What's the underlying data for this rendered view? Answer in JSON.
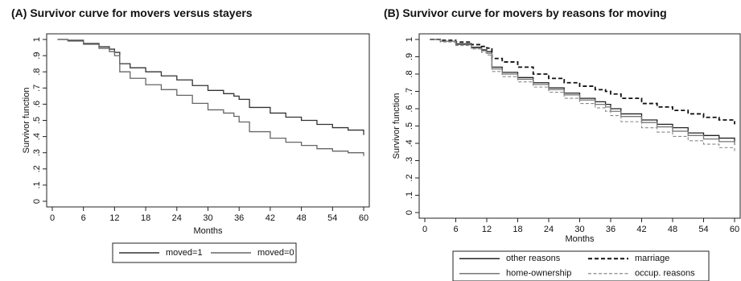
{
  "chart_data": [
    {
      "type": "line",
      "title": "(A) Survivor curve for movers versus stayers",
      "xlabel": "Months",
      "ylabel": "Survivor function",
      "xlim": [
        0,
        60
      ],
      "ylim": [
        0,
        1
      ],
      "xticks": [
        "0",
        "6",
        "12",
        "18",
        "24",
        "30",
        "36",
        "42",
        "48",
        "54",
        "60"
      ],
      "yticks": [
        "0",
        ".1",
        ".2",
        ".3",
        ".4",
        ".5",
        ".6",
        ".7",
        ".8",
        ".9",
        "1"
      ],
      "grid": false,
      "legend_placement": "bottom",
      "series": [
        {
          "name": "moved=1",
          "color": "#333333",
          "style": "solid",
          "x": [
            1,
            3,
            6,
            9,
            11,
            12,
            13,
            15,
            18,
            21,
            24,
            27,
            30,
            33,
            35,
            36,
            38,
            42,
            45,
            48,
            51,
            54,
            57,
            60
          ],
          "y": [
            1.0,
            0.995,
            0.975,
            0.955,
            0.94,
            0.92,
            0.85,
            0.825,
            0.8,
            0.775,
            0.75,
            0.715,
            0.685,
            0.665,
            0.65,
            0.63,
            0.58,
            0.545,
            0.52,
            0.5,
            0.475,
            0.455,
            0.44,
            0.41
          ]
        },
        {
          "name": "moved=0",
          "color": "#666666",
          "style": "solid",
          "x": [
            1,
            3,
            6,
            9,
            11,
            12,
            13,
            15,
            18,
            21,
            24,
            27,
            30,
            33,
            35,
            36,
            38,
            42,
            45,
            48,
            51,
            54,
            57,
            60
          ],
          "y": [
            1.0,
            0.99,
            0.97,
            0.945,
            0.925,
            0.9,
            0.8,
            0.76,
            0.72,
            0.69,
            0.655,
            0.605,
            0.565,
            0.545,
            0.525,
            0.49,
            0.43,
            0.39,
            0.365,
            0.345,
            0.325,
            0.31,
            0.3,
            0.28
          ]
        }
      ]
    },
    {
      "type": "line",
      "title": "(B) Survivor curve for movers by reasons for moving",
      "xlabel": "Months",
      "ylabel": "Survivor function",
      "xlim": [
        0,
        60
      ],
      "ylim": [
        0,
        1
      ],
      "xticks": [
        "0",
        "6",
        "12",
        "18",
        "24",
        "30",
        "36",
        "42",
        "48",
        "54",
        "60"
      ],
      "yticks": [
        "0",
        ".1",
        ".2",
        ".3",
        ".4",
        ".5",
        ".6",
        ".7",
        ".8",
        ".9",
        "1"
      ],
      "grid": false,
      "legend_placement": "bottom",
      "series": [
        {
          "name": "other reasons",
          "color": "#222222",
          "style": "solid",
          "x": [
            1,
            3,
            6,
            9,
            11,
            12,
            13,
            15,
            18,
            21,
            24,
            27,
            30,
            33,
            35,
            36,
            38,
            42,
            45,
            48,
            51,
            54,
            57,
            60
          ],
          "y": [
            1.0,
            0.99,
            0.975,
            0.955,
            0.94,
            0.93,
            0.84,
            0.81,
            0.78,
            0.75,
            0.72,
            0.69,
            0.66,
            0.64,
            0.625,
            0.6,
            0.57,
            0.535,
            0.51,
            0.49,
            0.46,
            0.445,
            0.43,
            0.41
          ]
        },
        {
          "name": "marriage",
          "color": "#111111",
          "style": "dashed-bold",
          "x": [
            1,
            3,
            6,
            9,
            11,
            12,
            13,
            15,
            18,
            21,
            24,
            27,
            30,
            33,
            35,
            36,
            38,
            42,
            45,
            48,
            51,
            54,
            57,
            60
          ],
          "y": [
            1.0,
            0.995,
            0.985,
            0.97,
            0.96,
            0.95,
            0.89,
            0.87,
            0.84,
            0.8,
            0.775,
            0.75,
            0.73,
            0.71,
            0.7,
            0.685,
            0.66,
            0.63,
            0.61,
            0.59,
            0.57,
            0.55,
            0.535,
            0.51
          ]
        },
        {
          "name": "home-ownership",
          "color": "#777777",
          "style": "solid",
          "x": [
            1,
            3,
            6,
            9,
            11,
            12,
            13,
            15,
            18,
            21,
            24,
            27,
            30,
            33,
            35,
            36,
            38,
            42,
            45,
            48,
            51,
            54,
            57,
            60
          ],
          "y": [
            1.0,
            0.99,
            0.97,
            0.95,
            0.935,
            0.92,
            0.83,
            0.8,
            0.77,
            0.74,
            0.71,
            0.68,
            0.65,
            0.625,
            0.61,
            0.585,
            0.555,
            0.52,
            0.495,
            0.47,
            0.445,
            0.425,
            0.41,
            0.39
          ]
        },
        {
          "name": "occup. reasons",
          "color": "#888888",
          "style": "dashed",
          "x": [
            1,
            3,
            6,
            9,
            11,
            12,
            13,
            15,
            18,
            21,
            24,
            27,
            30,
            33,
            35,
            36,
            38,
            42,
            45,
            48,
            51,
            54,
            57,
            60
          ],
          "y": [
            1.0,
            0.985,
            0.965,
            0.945,
            0.925,
            0.91,
            0.815,
            0.785,
            0.755,
            0.725,
            0.695,
            0.66,
            0.63,
            0.605,
            0.585,
            0.56,
            0.525,
            0.49,
            0.465,
            0.44,
            0.415,
            0.395,
            0.375,
            0.355
          ]
        }
      ]
    }
  ]
}
